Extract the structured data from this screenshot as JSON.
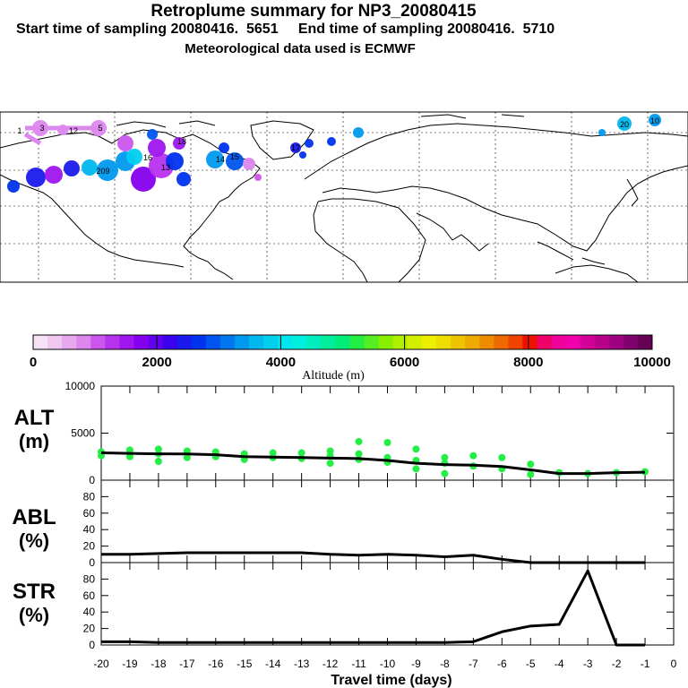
{
  "header": {
    "title": "Retroplume summary for NP3_20080415",
    "start": "Start time of sampling 20080416.  5651",
    "end": "End time of sampling 20080416.  5710",
    "met": "Meteorological data used is ECMWF"
  },
  "map": {
    "source_labels": [
      "1",
      "3",
      "5",
      "16",
      "13",
      "18",
      "20",
      "209",
      "10",
      "12",
      "14",
      "15",
      "17"
    ]
  },
  "colorbar": {
    "ticks": [
      "0",
      "2000",
      "4000",
      "6000",
      "8000",
      "10000"
    ],
    "label": "Altitude (m)",
    "colors": [
      "#f6e1f6",
      "#f0c8f0",
      "#e7a8ee",
      "#dd86ee",
      "#cc55ee",
      "#b833ee",
      "#9f16ee",
      "#8500ee",
      "#6300ee",
      "#3b00ee",
      "#1a1aee",
      "#0033ee",
      "#0055ee",
      "#0077ee",
      "#0099ee",
      "#00b7ee",
      "#00cfee",
      "#00e5ee",
      "#00eedd",
      "#00eebb",
      "#00ee99",
      "#00ee77",
      "#22ee44",
      "#55ee22",
      "#88ee00",
      "#b0ee00",
      "#d4ee00",
      "#eeee00",
      "#eedd00",
      "#eec400",
      "#eeaa00",
      "#ee8c00",
      "#ee6a00",
      "#ee4400",
      "#ee1100",
      "#ee0066",
      "#ee0099",
      "#ee00aa",
      "#d20099",
      "#b8008a",
      "#9d0080",
      "#80006e",
      "#660055"
    ]
  },
  "panels": {
    "alt": {
      "label1": "ALT",
      "label2": "(m)",
      "yticks": [
        "10000",
        "5000",
        "0"
      ]
    },
    "abl": {
      "label1": "ABL",
      "label2": "(%)",
      "yticks": [
        "80",
        "60",
        "40",
        "20",
        "0"
      ]
    },
    "str": {
      "label1": "STR",
      "label2": "(%)",
      "yticks": [
        "80",
        "60",
        "40",
        "20",
        "0"
      ]
    }
  },
  "chart_data": [
    {
      "type": "line",
      "title": "ALT",
      "ylabel": "ALT (m)",
      "ylim": [
        0,
        10000
      ],
      "x": [
        -20,
        -19,
        -18,
        -17,
        -16,
        -15,
        -14,
        -13,
        -12,
        -11,
        -10,
        -9,
        -8,
        -7,
        -6,
        -5,
        -4,
        -3,
        -2,
        -1
      ],
      "series": [
        {
          "name": "mean altitude",
          "values": [
            2900,
            2850,
            2800,
            2780,
            2700,
            2500,
            2450,
            2400,
            2350,
            2300,
            2100,
            1800,
            1650,
            1600,
            1450,
            1100,
            700,
            700,
            800,
            850
          ]
        }
      ],
      "scatter": {
        "name": "cluster altitudes",
        "x": [
          -20,
          -20,
          -19,
          -19,
          -18,
          -18,
          -18,
          -17,
          -17,
          -16,
          -16,
          -15,
          -15,
          -14,
          -14,
          -13,
          -13,
          -12,
          -12,
          -12,
          -11,
          -11,
          -11,
          -10,
          -10,
          -10,
          -9,
          -9,
          -9,
          -8,
          -8,
          -8,
          -7,
          -7,
          -6,
          -6,
          -5,
          -5,
          -4,
          -3,
          -2,
          -1
        ],
        "y": [
          3000,
          2600,
          3200,
          2500,
          3300,
          2800,
          2000,
          3100,
          2400,
          3000,
          2500,
          2800,
          2200,
          2900,
          2400,
          2900,
          2300,
          3100,
          2600,
          1800,
          4100,
          2800,
          2200,
          4000,
          2400,
          1900,
          3300,
          2100,
          1200,
          2400,
          1800,
          700,
          2600,
          1500,
          2400,
          1200,
          1700,
          600,
          800,
          700,
          800,
          900
        ]
      }
    },
    {
      "type": "line",
      "title": "ABL",
      "ylabel": "ABL (%)",
      "ylim": [
        0,
        100
      ],
      "x": [
        -20,
        -19,
        -18,
        -17,
        -16,
        -15,
        -14,
        -13,
        -12,
        -11,
        -10,
        -9,
        -8,
        -7,
        -6,
        -5,
        -4,
        -3,
        -2,
        -1
      ],
      "series": [
        {
          "name": "ABL",
          "values": [
            10,
            10,
            11,
            12,
            12,
            12,
            12,
            12,
            10,
            9,
            10,
            9,
            7,
            9,
            4,
            0,
            0,
            0,
            0,
            0
          ]
        }
      ]
    },
    {
      "type": "line",
      "title": "STR",
      "ylabel": "STR (%)",
      "ylim": [
        0,
        100
      ],
      "x": [
        -20,
        -19,
        -18,
        -17,
        -16,
        -15,
        -14,
        -13,
        -12,
        -11,
        -10,
        -9,
        -8,
        -7,
        -6,
        -5,
        -4,
        -3,
        -2,
        -1
      ],
      "series": [
        {
          "name": "STR",
          "values": [
            4,
            4,
            3,
            3,
            3,
            3,
            3,
            3,
            3,
            3,
            3,
            3,
            3,
            4,
            16,
            23,
            25,
            90,
            0,
            0
          ]
        }
      ]
    }
  ],
  "xaxis": {
    "ticks": [
      "-20",
      "-19",
      "-18",
      "-17",
      "-16",
      "-15",
      "-14",
      "-13",
      "-12",
      "-11",
      "-10",
      "-9",
      "-8",
      "-7",
      "-6",
      "-5",
      "-4",
      "-3",
      "-2",
      "-1",
      "0"
    ],
    "label": "Travel time (days)"
  }
}
